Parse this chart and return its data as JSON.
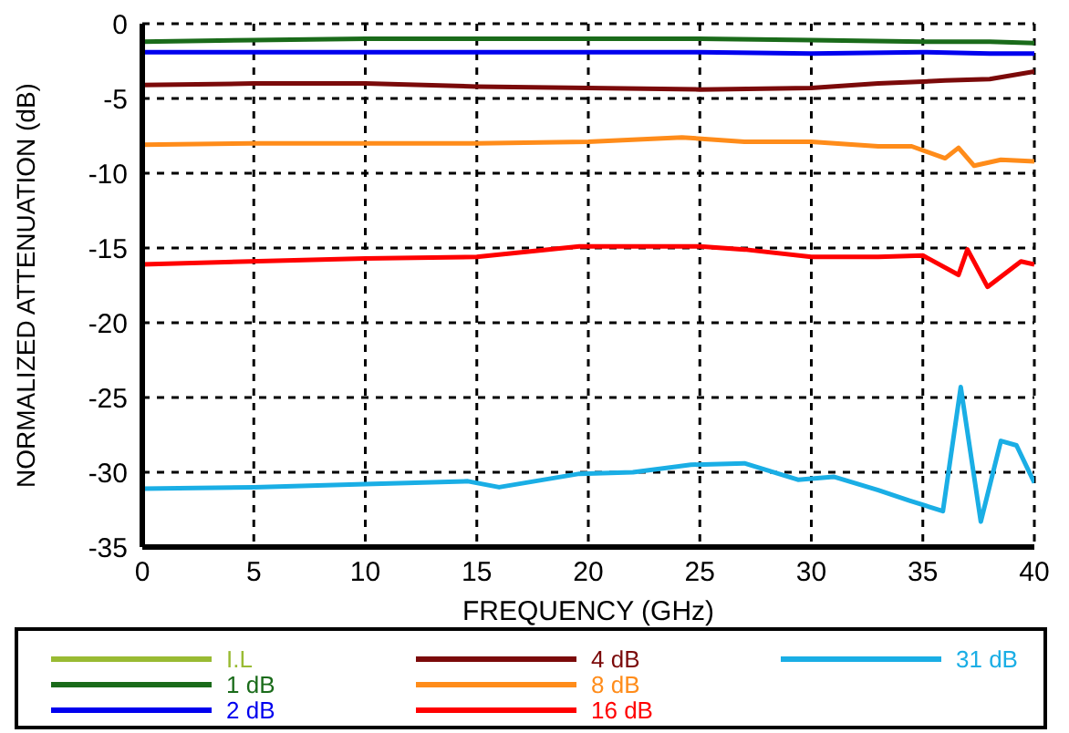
{
  "chart_data": {
    "type": "line",
    "xlabel": "FREQUENCY (GHz)",
    "ylabel": "NORMALIZED ATTENUATION (dB)",
    "xlim": [
      0,
      40
    ],
    "xticks": [
      0,
      5,
      10,
      15,
      20,
      25,
      30,
      35,
      40
    ],
    "ylim": [
      -35,
      0
    ],
    "yticks": [
      -35,
      -30,
      -25,
      -20,
      -15,
      -10,
      -5,
      0
    ],
    "grid": true,
    "legend": "bottom",
    "line_style": "solid",
    "marker": "none",
    "series": [
      {
        "name": "I.L",
        "color": "#99bb33"
      },
      {
        "name": "1 dB",
        "color": "#1a6b1a",
        "x": [
          0,
          5,
          10,
          15,
          20,
          25,
          30,
          35,
          38,
          40
        ],
        "values": [
          -1.2,
          -1.1,
          -1.0,
          -1.0,
          -1.0,
          -1.0,
          -1.1,
          -1.2,
          -1.2,
          -1.3
        ]
      },
      {
        "name": "2 dB",
        "color": "#0000ee",
        "x": [
          0,
          5,
          10,
          15,
          20,
          25,
          30,
          35,
          38,
          40
        ],
        "values": [
          -1.9,
          -1.9,
          -1.9,
          -1.9,
          -1.9,
          -1.9,
          -2.0,
          -1.9,
          -2.0,
          -2.0
        ]
      },
      {
        "name": "4 dB",
        "color": "#7b0a0a",
        "x": [
          0,
          5,
          10,
          15,
          20,
          25,
          30,
          33,
          36,
          38,
          40
        ],
        "values": [
          -4.1,
          -4.0,
          -4.0,
          -4.2,
          -4.3,
          -4.4,
          -4.3,
          -4.0,
          -3.8,
          -3.7,
          -3.2
        ]
      },
      {
        "name": "8 dB",
        "color": "#ff8c1a",
        "x": [
          0,
          5,
          10,
          15,
          20,
          24.2,
          27,
          30,
          33,
          34.5,
          36,
          36.6,
          37.3,
          38.5,
          40
        ],
        "values": [
          -8.1,
          -8.0,
          -8.0,
          -8.0,
          -7.9,
          -7.6,
          -7.9,
          -7.9,
          -8.2,
          -8.2,
          -9.0,
          -8.3,
          -9.5,
          -9.1,
          -9.2
        ]
      },
      {
        "name": "16 dB",
        "color": "#ff0000",
        "x": [
          0,
          4.8,
          10,
          15,
          19.6,
          25,
          27,
          30,
          33,
          35,
          36.6,
          37.0,
          37.9,
          39.4,
          40
        ],
        "values": [
          -16.1,
          -15.9,
          -15.7,
          -15.6,
          -14.9,
          -14.9,
          -15.1,
          -15.6,
          -15.6,
          -15.5,
          -16.8,
          -15.1,
          -17.6,
          -15.9,
          -16.1
        ]
      },
      {
        "name": "31 dB",
        "color": "#1aaee5",
        "x": [
          0,
          5,
          10,
          14.6,
          16,
          19.6,
          22,
          24.6,
          27,
          29.4,
          31,
          33,
          34.4,
          35.9,
          36.7,
          37.6,
          38.5,
          39.2,
          40
        ],
        "values": [
          -31.1,
          -31.0,
          -30.8,
          -30.6,
          -31.0,
          -30.1,
          -30.0,
          -29.5,
          -29.4,
          -30.5,
          -30.3,
          -31.2,
          -31.9,
          -32.6,
          -24.3,
          -33.3,
          -27.9,
          -28.2,
          -30.7
        ]
      }
    ]
  }
}
